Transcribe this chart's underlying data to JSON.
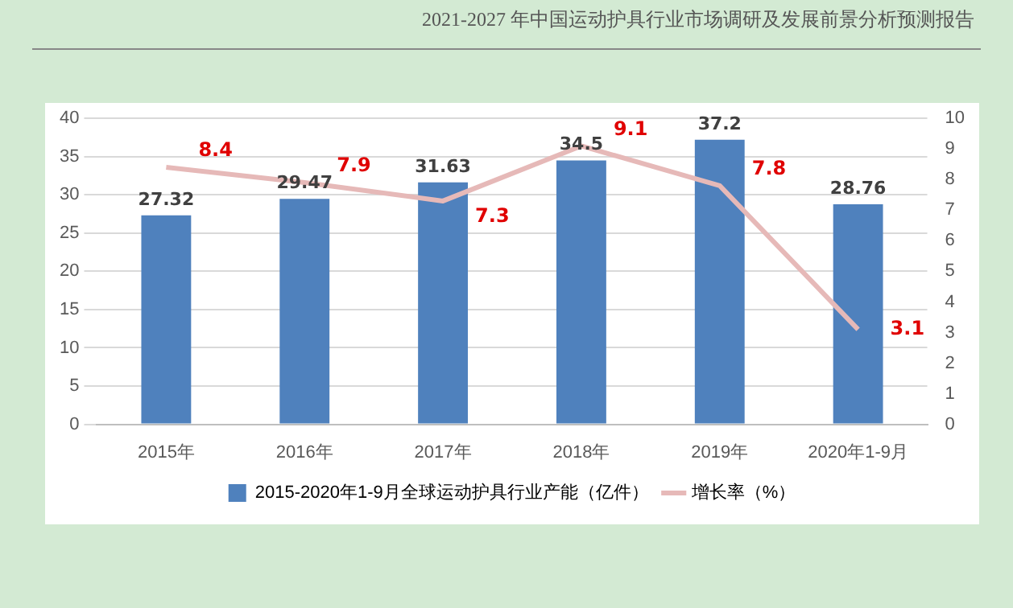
{
  "chart_data": {
    "type": "bar",
    "title": "2021-2027 年中国运动护具行业市场调研及发展前景分析预测报告",
    "categories": [
      "2015年",
      "2016年",
      "2017年",
      "2018年",
      "2019年",
      "2020年1-9月"
    ],
    "series": [
      {
        "name": "2015-2020年1-9月全球运动护具行业产能（亿件）",
        "color": "#4f81bd",
        "values": [
          27.32,
          29.47,
          31.63,
          34.5,
          37.2,
          28.76
        ]
      },
      {
        "name": "增长率（%）",
        "type": "line",
        "axis": "y2",
        "color": "#e6b9b8",
        "values": [
          8.4,
          7.9,
          7.3,
          9.1,
          7.8,
          3.1
        ]
      }
    ],
    "ylim": [
      0,
      40
    ],
    "yticks": [
      0,
      5,
      10,
      15,
      20,
      25,
      30,
      35,
      40
    ],
    "y2lim": [
      0,
      10
    ],
    "y2ticks": [
      0,
      1,
      2,
      3,
      4,
      5,
      6,
      7,
      8,
      9,
      10
    ],
    "grid": "y",
    "legend": "bottom",
    "data_labels": true,
    "marker": "none"
  }
}
